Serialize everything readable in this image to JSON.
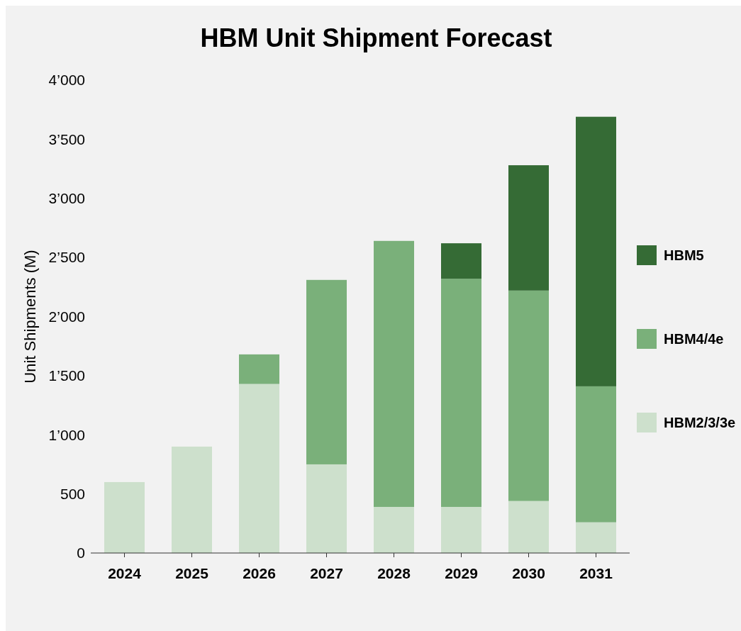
{
  "chart_data": {
    "type": "bar",
    "title": "HBM Unit Shipment Forecast",
    "ylabel": "Unit Shipments (M)",
    "stacked": true,
    "legend": "right",
    "grid": false,
    "categories": [
      "2024",
      "2025",
      "2026",
      "2027",
      "2028",
      "2029",
      "2030",
      "2031"
    ],
    "series": [
      {
        "name": "HBM2/3/3e",
        "color": "#cde0cc",
        "values": [
          600,
          900,
          1430,
          750,
          390,
          390,
          440,
          260
        ]
      },
      {
        "name": "HBM4/4e",
        "color": "#7ab07a",
        "values": [
          0,
          0,
          250,
          1560,
          2250,
          1930,
          1780,
          1150
        ]
      },
      {
        "name": "HBM5",
        "color": "#356b35",
        "values": [
          0,
          0,
          0,
          0,
          0,
          300,
          1060,
          2280
        ]
      }
    ],
    "ylim": [
      0,
      4000
    ],
    "yticks": [
      0,
      500,
      {
        "value": 1000,
        "label": "1’000"
      },
      {
        "value": 1500,
        "label": "1’500"
      },
      {
        "value": 2000,
        "label": "2’000"
      },
      {
        "value": 2500,
        "label": "2’500"
      },
      {
        "value": 3000,
        "label": "3’000"
      },
      {
        "value": 3500,
        "label": "3’500"
      },
      {
        "value": 4000,
        "label": "4’000"
      }
    ]
  }
}
